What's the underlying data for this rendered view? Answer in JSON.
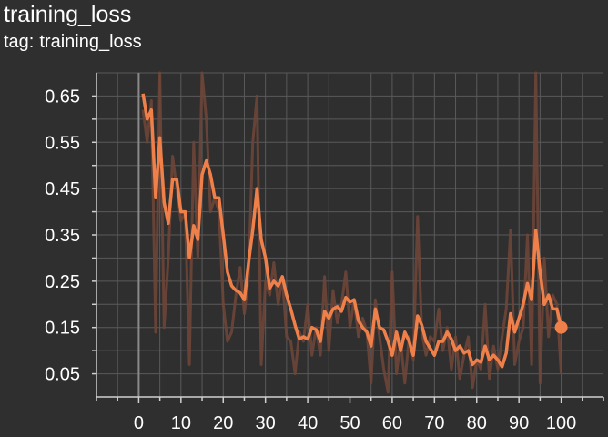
{
  "header": {
    "title": "training_loss",
    "tag_label": "tag:",
    "tag_value": "training_loss"
  },
  "colors": {
    "background": "#2f2f2f",
    "grid": "#5a5a5a",
    "smoothed_line": "#f0804a",
    "raw_line": "#6e4638",
    "zero_axis": "#8a8a8a",
    "text": "#ffffff"
  },
  "chart_data": {
    "type": "line",
    "title": "training_loss",
    "subtitle": "tag: training_loss",
    "xlabel": "",
    "ylabel": "",
    "xlim": [
      -10,
      110
    ],
    "ylim": [
      0,
      0.7
    ],
    "x_ticks": [
      0,
      10,
      20,
      30,
      40,
      50,
      60,
      70,
      80,
      90,
      100
    ],
    "y_ticks": [
      0.05,
      0.15,
      0.25,
      0.35,
      0.45,
      0.55,
      0.65
    ],
    "y_tick_labels": [
      "0.05",
      "0.15",
      "0.25",
      "0.35",
      "0.45",
      "0.55",
      "0.65"
    ],
    "grid": true,
    "legend": "none",
    "series": [
      {
        "role": "raw",
        "x": [
          1,
          2,
          3,
          4,
          5,
          6,
          7,
          8,
          9,
          10,
          11,
          12,
          13,
          14,
          15,
          16,
          17,
          18,
          19,
          20,
          21,
          22,
          23,
          24,
          25,
          26,
          27,
          28,
          29,
          30,
          31,
          32,
          33,
          34,
          35,
          36,
          37,
          38,
          39,
          40,
          41,
          42,
          43,
          44,
          45,
          46,
          47,
          48,
          49,
          50,
          51,
          52,
          53,
          54,
          55,
          56,
          57,
          58,
          59,
          60,
          61,
          62,
          63,
          64,
          65,
          66,
          67,
          68,
          69,
          70,
          71,
          72,
          73,
          74,
          75,
          76,
          77,
          78,
          79,
          80,
          81,
          82,
          83,
          84,
          85,
          86,
          87,
          88,
          89,
          90,
          91,
          92,
          93,
          94,
          95,
          96,
          97,
          98,
          99,
          100
        ],
        "values": [
          0.62,
          0.55,
          0.64,
          0.14,
          0.7,
          0.15,
          0.3,
          0.52,
          0.45,
          0.38,
          0.4,
          0.07,
          0.55,
          0.3,
          0.7,
          0.6,
          0.4,
          0.43,
          0.4,
          0.2,
          0.12,
          0.14,
          0.22,
          0.28,
          0.18,
          0.26,
          0.55,
          0.65,
          0.07,
          0.25,
          0.22,
          0.29,
          0.2,
          0.26,
          0.13,
          0.12,
          0.05,
          0.14,
          0.12,
          0.2,
          0.09,
          0.15,
          0.09,
          0.26,
          0.1,
          0.23,
          0.16,
          0.2,
          0.27,
          0.15,
          0.21,
          0.13,
          0.17,
          0.14,
          0.03,
          0.21,
          0.13,
          0.06,
          0.01,
          0.27,
          0.05,
          0.12,
          0.03,
          0.13,
          0.08,
          0.39,
          0.14,
          0.09,
          0.13,
          0.12,
          0.19,
          0.1,
          0.15,
          0.06,
          0.13,
          0.04,
          0.09,
          0.13,
          0.02,
          0.08,
          0.06,
          0.2,
          0.04,
          0.11,
          0.06,
          0.13,
          0.19,
          0.36,
          0.07,
          0.12,
          0.15,
          0.35,
          0.07,
          0.7,
          0.03,
          0.3,
          0.13,
          0.22,
          0.2,
          0.05
        ]
      },
      {
        "role": "smoothed",
        "x": [
          1,
          2,
          3,
          4,
          5,
          6,
          7,
          8,
          9,
          10,
          11,
          12,
          13,
          14,
          15,
          16,
          17,
          18,
          19,
          20,
          21,
          22,
          23,
          24,
          25,
          26,
          27,
          28,
          29,
          30,
          31,
          32,
          33,
          34,
          35,
          36,
          37,
          38,
          39,
          40,
          41,
          42,
          43,
          44,
          45,
          46,
          47,
          48,
          49,
          50,
          51,
          52,
          53,
          54,
          55,
          56,
          57,
          58,
          59,
          60,
          61,
          62,
          63,
          64,
          65,
          66,
          67,
          68,
          69,
          70,
          71,
          72,
          73,
          74,
          75,
          76,
          77,
          78,
          79,
          80,
          81,
          82,
          83,
          84,
          85,
          86,
          87,
          88,
          89,
          90,
          91,
          92,
          93,
          94,
          95,
          96,
          97,
          98,
          99,
          100
        ],
        "values": [
          0.655,
          0.6,
          0.62,
          0.43,
          0.56,
          0.42,
          0.375,
          0.47,
          0.47,
          0.4,
          0.4,
          0.3,
          0.37,
          0.34,
          0.48,
          0.51,
          0.48,
          0.43,
          0.43,
          0.35,
          0.27,
          0.24,
          0.23,
          0.225,
          0.21,
          0.29,
          0.36,
          0.45,
          0.34,
          0.3,
          0.235,
          0.25,
          0.24,
          0.26,
          0.22,
          0.19,
          0.155,
          0.125,
          0.13,
          0.125,
          0.15,
          0.145,
          0.12,
          0.185,
          0.17,
          0.19,
          0.195,
          0.185,
          0.215,
          0.205,
          0.21,
          0.165,
          0.15,
          0.14,
          0.11,
          0.19,
          0.15,
          0.145,
          0.12,
          0.09,
          0.14,
          0.1,
          0.14,
          0.12,
          0.09,
          0.175,
          0.155,
          0.12,
          0.105,
          0.09,
          0.12,
          0.12,
          0.14,
          0.125,
          0.1,
          0.11,
          0.095,
          0.1,
          0.07,
          0.08,
          0.075,
          0.11,
          0.08,
          0.09,
          0.08,
          0.065,
          0.095,
          0.18,
          0.14,
          0.17,
          0.2,
          0.245,
          0.21,
          0.36,
          0.27,
          0.2,
          0.22,
          0.19,
          0.19,
          0.15
        ]
      }
    ]
  }
}
